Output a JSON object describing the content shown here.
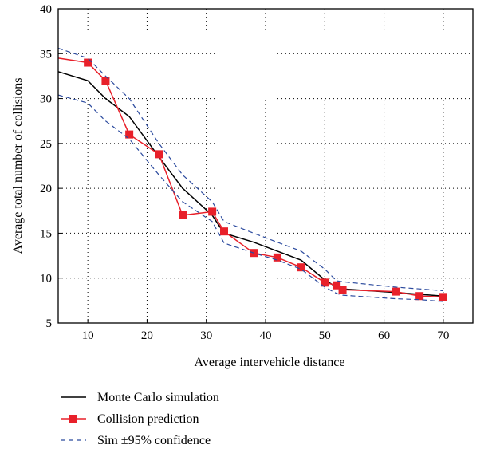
{
  "chart_data": {
    "type": "line",
    "xlabel": "Average intervehicle distance",
    "ylabel": "Average total number of collisions",
    "xlim": [
      5,
      75
    ],
    "ylim": [
      5,
      40
    ],
    "xticks": [
      10,
      20,
      30,
      40,
      50,
      60,
      70
    ],
    "yticks": [
      5,
      10,
      15,
      20,
      25,
      30,
      35,
      40
    ],
    "grid": true,
    "legend_position": "below-left",
    "series": [
      {
        "name": "Monte Carlo simulation",
        "style": "solid",
        "color": "#000000",
        "x": [
          5,
          10,
          13,
          17,
          22,
          26,
          31,
          33,
          38,
          42,
          46,
          50,
          52,
          53,
          62,
          66,
          70
        ],
        "y": [
          33,
          32,
          30,
          28,
          23.5,
          20,
          17,
          15,
          14,
          13,
          12,
          9.8,
          9,
          8.8,
          8.4,
          8.2,
          8
        ]
      },
      {
        "name": "Collision prediction",
        "style": "solid-square-markers",
        "color": "#e8202a",
        "x": [
          5,
          10,
          13,
          17,
          22,
          26,
          31,
          33,
          38,
          42,
          46,
          50,
          52,
          53,
          62,
          66,
          70
        ],
        "y": [
          34.5,
          34,
          32,
          26,
          23.8,
          17,
          17.4,
          15.2,
          12.8,
          12.3,
          11.2,
          9.5,
          9.2,
          8.7,
          8.5,
          8,
          7.9
        ]
      },
      {
        "name": "Sim ±95% confidence",
        "style": "dashed",
        "color": "#2b4a9e",
        "x": [
          5,
          10,
          13,
          17,
          22,
          26,
          31,
          33,
          38,
          42,
          46,
          50,
          52,
          53,
          62,
          66,
          70
        ],
        "y": [
          35.6,
          34.5,
          32.5,
          30,
          25,
          21.5,
          18.5,
          16.3,
          15,
          14,
          13,
          11,
          9.7,
          9.6,
          9,
          8.8,
          8.6
        ]
      },
      {
        "name": "",
        "style": "dashed",
        "color": "#2b4a9e",
        "x": [
          5,
          10,
          13,
          17,
          22,
          26,
          31,
          33,
          38,
          42,
          46,
          50,
          52,
          53,
          62,
          66,
          70
        ],
        "y": [
          30.4,
          29.5,
          27.5,
          25.5,
          21.5,
          18.5,
          16.3,
          13.9,
          12.8,
          12,
          11,
          9,
          8.3,
          8.1,
          7.7,
          7.6,
          7.4
        ]
      }
    ]
  },
  "legend": {
    "items": [
      {
        "label": "Monte Carlo simulation"
      },
      {
        "label": "Collision prediction"
      },
      {
        "label": "Sim ±95% confidence"
      }
    ]
  }
}
